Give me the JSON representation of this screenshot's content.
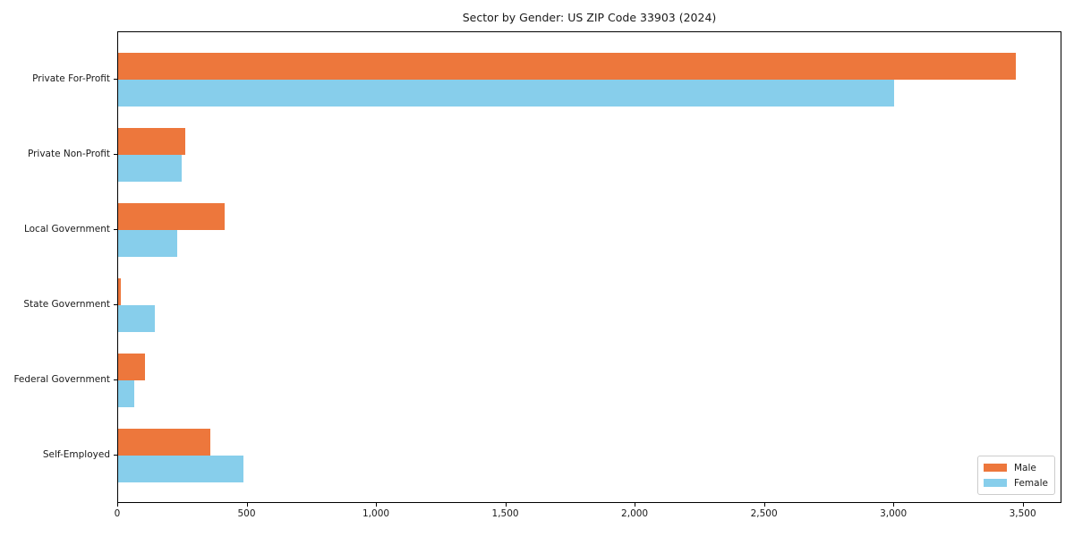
{
  "chart_data": {
    "type": "bar",
    "orientation": "horizontal",
    "title": "Sector by Gender: US ZIP Code 33903 (2024)",
    "categories": [
      "Private For-Profit",
      "Private Non-Profit",
      "Local Government",
      "State Government",
      "Federal Government",
      "Self-Employed"
    ],
    "series": [
      {
        "name": "Male",
        "color": "#ED773C",
        "values": [
          3470,
          260,
          410,
          9,
          105,
          358
        ]
      },
      {
        "name": "Female",
        "color": "#87CEEB",
        "values": [
          3000,
          245,
          228,
          142,
          63,
          484
        ]
      }
    ],
    "xlabel": "",
    "ylabel": "",
    "xlim": [
      0,
      3650
    ],
    "xticks": [
      0,
      500,
      1000,
      1500,
      2000,
      2500,
      3000,
      3500
    ],
    "xtick_labels": [
      "0",
      "500",
      "1,000",
      "1,500",
      "2,000",
      "2,500",
      "3,000",
      "3,500"
    ],
    "legend": {
      "position": "lower-right",
      "entries": [
        "Male",
        "Female"
      ]
    },
    "grid": false,
    "colors": {
      "axis": "#000000",
      "text": "#1a1a1a",
      "legend_border": "#cccccc",
      "background": "#ffffff"
    }
  }
}
